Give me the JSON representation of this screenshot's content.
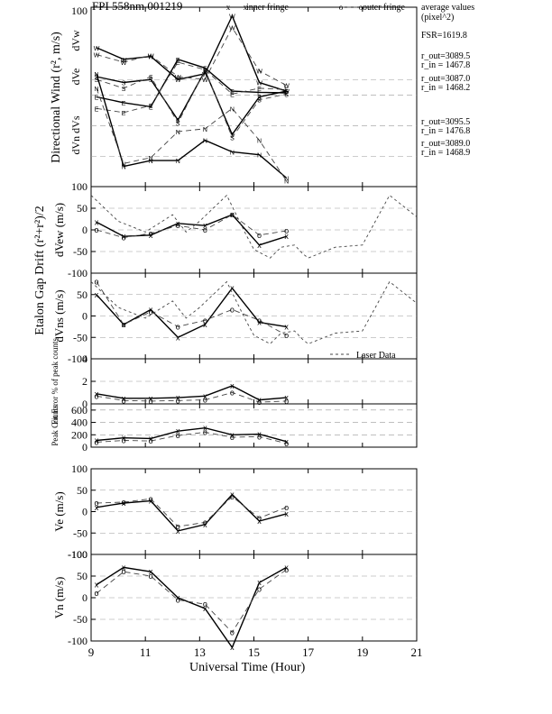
{
  "header": {
    "title": "FPI 558nm 001219",
    "legend_inner": "inner fringe",
    "legend_outer": "outer fringe",
    "avg_title_1": "average values",
    "avg_title_2": "(pixel^2)",
    "fsr": "FSR=1619.8",
    "r_values": [
      [
        "r_out=3089.5",
        "r_in = 1467.8"
      ],
      [
        "r_out=3087.0",
        "r_in = 1468.2"
      ],
      [
        "r_out=3095.5",
        "r_in = 1476.8"
      ],
      [
        "r_out=3089.0",
        "r_in = 1468.9"
      ]
    ]
  },
  "chart_data": [
    {
      "type": "line",
      "name": "directional-wind",
      "ylabel": "Directional Wind (r², m/s)",
      "sublabels": [
        "dVw",
        "dVe",
        "dVn  dVs"
      ],
      "y_tick_labels": [
        "100",
        "100"
      ],
      "series": [
        {
          "name": "W inner",
          "style": "solid",
          "marker": "W",
          "x": [
            9.2,
            10.2,
            11.2,
            12.2,
            13.2,
            14.2,
            15.2,
            16.2
          ],
          "y": [
            30,
            10,
            15,
            -25,
            -15,
            85,
            -30,
            -45
          ]
        },
        {
          "name": "W outer",
          "style": "dashed",
          "marker": "W",
          "x": [
            9.2,
            10.2,
            11.2,
            12.2,
            13.2,
            14.2,
            15.2,
            16.2
          ],
          "y": [
            18,
            5,
            17,
            -20,
            -25,
            65,
            -10,
            -35
          ]
        },
        {
          "name": "E inner",
          "style": "solid",
          "marker": "E",
          "x": [
            9.2,
            10.2,
            11.2,
            12.2,
            13.2,
            14.2,
            15.2,
            16.2
          ],
          "y": [
            -55,
            -65,
            -72,
            10,
            -5,
            -45,
            -47,
            -48
          ]
        },
        {
          "name": "E outer",
          "style": "dashed",
          "marker": "E",
          "x": [
            9.2,
            10.2,
            11.2,
            12.2,
            13.2,
            14.2,
            15.2,
            16.2
          ],
          "y": [
            -75,
            -82,
            -70,
            5,
            -8,
            -50,
            -40,
            -42
          ]
        },
        {
          "name": "S inner",
          "style": "solid",
          "marker": "S",
          "x": [
            9.2,
            10.2,
            11.2,
            12.2,
            13.2,
            14.2,
            15.2,
            16.2
          ],
          "y": [
            -20,
            -30,
            -25,
            -95,
            -10,
            -120,
            -55,
            -45
          ]
        },
        {
          "name": "S outer",
          "style": "dashed",
          "marker": "S",
          "x": [
            9.2,
            10.2,
            11.2,
            12.2,
            13.2,
            14.2,
            15.2,
            16.2
          ],
          "y": [
            -25,
            -40,
            -20,
            -100,
            -8,
            -125,
            -60,
            -50
          ]
        },
        {
          "name": "N inner",
          "style": "solid",
          "marker": "N",
          "x": [
            9.2,
            10.2,
            11.2,
            12.2,
            13.2,
            14.2,
            15.2,
            16.2
          ],
          "y": [
            -15,
            -175,
            -165,
            -165,
            -130,
            -150,
            -155,
            -195
          ]
        },
        {
          "name": "N outer",
          "style": "dashed",
          "marker": "N",
          "x": [
            9.2,
            10.2,
            11.2,
            12.2,
            13.2,
            14.2,
            15.2,
            16.2
          ],
          "y": [
            -40,
            -170,
            -160,
            -115,
            -110,
            -75,
            -130,
            -200
          ]
        }
      ]
    },
    {
      "type": "line",
      "name": "etalon-drift-ew",
      "ylabel": "dVew (m/s)",
      "ylim": [
        -100,
        100
      ],
      "series": [
        {
          "name": "inner fringe",
          "style": "solid",
          "marker": "x",
          "x": [
            9.2,
            10.2,
            11.2,
            12.2,
            13.2,
            14.2,
            15.2,
            16.2
          ],
          "y": [
            18,
            -15,
            -12,
            15,
            10,
            35,
            -35,
            -15
          ]
        },
        {
          "name": "outer fringe",
          "style": "dashed",
          "marker": "o",
          "x": [
            9.2,
            10.2,
            11.2,
            12.2,
            13.2,
            14.2,
            15.2,
            16.2
          ],
          "y": [
            0,
            -18,
            -8,
            10,
            0,
            35,
            -12,
            -2
          ]
        },
        {
          "name": "Laser Data",
          "style": "dotted",
          "marker": "none",
          "x": [
            9,
            10,
            11,
            12,
            12.5,
            13,
            14,
            14.7,
            15,
            15.6,
            16,
            16.5,
            16.8,
            17,
            18,
            19,
            20,
            21
          ],
          "y": [
            80,
            20,
            -5,
            35,
            -5,
            20,
            80,
            -10,
            -45,
            -65,
            -40,
            -35,
            -55,
            -65,
            -40,
            -35,
            80,
            30
          ]
        }
      ]
    },
    {
      "type": "line",
      "name": "etalon-drift-ns",
      "ylabel": "dVns (m/s)",
      "shared_ylabel": "Etalon Gap Drift (r²+r²)/2",
      "ylim": [
        -100,
        100
      ],
      "series": [
        {
          "name": "inner fringe",
          "style": "solid",
          "marker": "x",
          "x": [
            9.2,
            10.2,
            11.2,
            12.2,
            13.2,
            14.2,
            15.2,
            16.2
          ],
          "y": [
            50,
            -20,
            15,
            -50,
            -20,
            65,
            -15,
            -25
          ]
        },
        {
          "name": "outer fringe",
          "style": "dashed",
          "marker": "o",
          "x": [
            9.2,
            10.2,
            11.2,
            12.2,
            13.2,
            14.2,
            15.2,
            16.2
          ],
          "y": [
            80,
            -20,
            10,
            -25,
            -10,
            15,
            -10,
            -45
          ]
        },
        {
          "name": "Laser Data",
          "style": "dotted",
          "marker": "none",
          "x": [
            9,
            10,
            11,
            12,
            12.5,
            13,
            14,
            14.7,
            15,
            15.6,
            16,
            16.5,
            16.8,
            17,
            18,
            19,
            20,
            21
          ],
          "y": [
            80,
            20,
            -5,
            35,
            -5,
            20,
            80,
            -10,
            -45,
            -65,
            -40,
            -35,
            -55,
            -65,
            -40,
            -35,
            80,
            30
          ]
        }
      ],
      "legend": "Laser Data"
    },
    {
      "type": "line",
      "name": "fit-error",
      "ylabel": "Fit Error % of peak counts",
      "ylim": [
        0,
        4
      ],
      "series": [
        {
          "name": "inner fringe",
          "style": "solid",
          "marker": "x",
          "x": [
            9.2,
            10.2,
            11.2,
            12.2,
            13.2,
            14.2,
            15.2,
            16.2
          ],
          "y": [
            0.9,
            0.5,
            0.5,
            0.55,
            0.7,
            1.6,
            0.35,
            0.55
          ]
        },
        {
          "name": "outer fringe",
          "style": "dashed",
          "marker": "o",
          "x": [
            9.2,
            10.2,
            11.2,
            12.2,
            13.2,
            14.2,
            15.2,
            16.2
          ],
          "y": [
            0.7,
            0.3,
            0.25,
            0.3,
            0.35,
            1.0,
            0.15,
            0.25
          ]
        }
      ]
    },
    {
      "type": "line",
      "name": "peak-counts",
      "ylabel": "Peak Counts",
      "ylim": [
        0,
        700
      ],
      "series": [
        {
          "name": "inner fringe",
          "style": "solid",
          "marker": "x",
          "x": [
            9.2,
            10.2,
            11.2,
            12.2,
            13.2,
            14.2,
            15.2,
            16.2
          ],
          "y": [
            110,
            150,
            140,
            260,
            310,
            200,
            210,
            90
          ]
        },
        {
          "name": "outer fringe",
          "style": "dashed",
          "marker": "o",
          "x": [
            9.2,
            10.2,
            11.2,
            12.2,
            13.2,
            14.2,
            15.2,
            16.2
          ],
          "y": [
            80,
            110,
            100,
            190,
            240,
            160,
            170,
            60
          ]
        }
      ]
    },
    {
      "type": "line",
      "name": "ve",
      "ylabel": "Ve (m/s)",
      "ylim": [
        -100,
        100
      ],
      "series": [
        {
          "name": "inner fringe",
          "style": "solid",
          "marker": "x",
          "x": [
            9.2,
            10.2,
            11.2,
            12.2,
            13.2,
            14.2,
            15.2,
            16.2
          ],
          "y": [
            10,
            20,
            25,
            -45,
            -30,
            40,
            -22,
            -5
          ]
        },
        {
          "name": "outer fringe",
          "style": "dashed",
          "marker": "o",
          "x": [
            9.2,
            10.2,
            11.2,
            12.2,
            13.2,
            14.2,
            15.2,
            16.2
          ],
          "y": [
            20,
            22,
            30,
            -35,
            -25,
            35,
            -15,
            10
          ]
        }
      ]
    },
    {
      "type": "line",
      "name": "vn",
      "ylabel": "Vn (m/s)",
      "ylim": [
        -100,
        100
      ],
      "series": [
        {
          "name": "inner fringe",
          "style": "solid",
          "marker": "x",
          "x": [
            9.2,
            10.2,
            11.2,
            12.2,
            13.2,
            14.2,
            15.2,
            16.2
          ],
          "y": [
            30,
            70,
            60,
            0,
            -25,
            -115,
            35,
            70
          ]
        },
        {
          "name": "outer fringe",
          "style": "dashed",
          "marker": "o",
          "x": [
            9.2,
            10.2,
            11.2,
            12.2,
            13.2,
            14.2,
            15.2,
            16.2
          ],
          "y": [
            10,
            60,
            50,
            -5,
            -15,
            -80,
            20,
            65
          ]
        }
      ]
    }
  ],
  "x_axis": {
    "label": "Universal Time (Hour)",
    "ticks": [
      "9",
      "11",
      "13",
      "15",
      "17",
      "19",
      "21"
    ],
    "range": [
      9,
      21
    ]
  },
  "y_tick_sets": {
    "pm100_full": [
      "100",
      "50",
      "0",
      "-50",
      "-100"
    ],
    "pm100_short": [
      "50",
      "0",
      "-50",
      "-100"
    ],
    "fit": [
      "4",
      "2",
      "0"
    ],
    "peak": [
      "600",
      "400",
      "200",
      "0"
    ],
    "ve": [
      "100",
      "50",
      "0",
      "-50",
      "-100"
    ],
    "vn": [
      "-100",
      "50",
      "0",
      "-50",
      "-100"
    ]
  }
}
